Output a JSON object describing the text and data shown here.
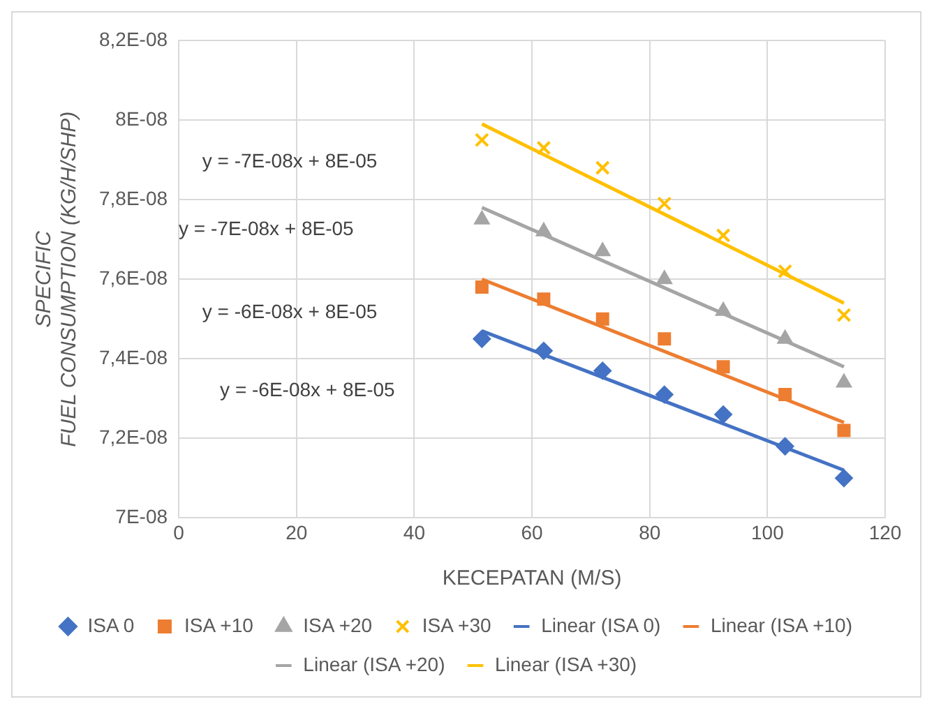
{
  "chart_data": {
    "type": "scatter",
    "xlabel": "KECEPATAN (M/S)",
    "ylabel": "SPECIFIC FUEL CONSUMPTION (KG/H/SHP)",
    "xlim": [
      0,
      120
    ],
    "xticks": [
      0,
      20,
      40,
      60,
      80,
      100,
      120
    ],
    "ylim": [
      7e-08,
      8.2e-08
    ],
    "yticks": [
      {
        "value": 7e-08,
        "label": "7E-08"
      },
      {
        "value": 7.2e-08,
        "label": "7,2E-08"
      },
      {
        "value": 7.4e-08,
        "label": "7,4E-08"
      },
      {
        "value": 7.6e-08,
        "label": "7,6E-08"
      },
      {
        "value": 7.8e-08,
        "label": "7,8E-08"
      },
      {
        "value": 8e-08,
        "label": "8E-08"
      },
      {
        "value": 8.2e-08,
        "label": "8,2E-08"
      }
    ],
    "grid": true,
    "legend": "bottom",
    "x": [
      51.5,
      62,
      72,
      82.5,
      92.5,
      103,
      113
    ],
    "series": [
      {
        "name": "ISA 0",
        "type": "scatter",
        "marker": "diamond",
        "color": "#4472c4",
        "values": [
          7.45e-08,
          7.42e-08,
          7.37e-08,
          7.31e-08,
          7.26e-08,
          7.18e-08,
          7.1e-08
        ]
      },
      {
        "name": "ISA +10",
        "type": "scatter",
        "marker": "square",
        "color": "#ed7d31",
        "values": [
          7.58e-08,
          7.55e-08,
          7.5e-08,
          7.45e-08,
          7.38e-08,
          7.31e-08,
          7.22e-08
        ]
      },
      {
        "name": "ISA +20",
        "type": "scatter",
        "marker": "triangle",
        "color": "#a5a5a5",
        "values": [
          7.75e-08,
          7.72e-08,
          7.67e-08,
          7.6e-08,
          7.52e-08,
          7.45e-08,
          7.34e-08
        ]
      },
      {
        "name": "ISA +30",
        "type": "scatter",
        "marker": "cross",
        "color": "#ffc000",
        "values": [
          7.95e-08,
          7.93e-08,
          7.88e-08,
          7.79e-08,
          7.71e-08,
          7.62e-08,
          7.51e-08
        ]
      },
      {
        "name": "Linear (ISA 0)",
        "type": "line",
        "marker": "none",
        "color": "#4472c4",
        "values": [
          7.47e-08,
          null,
          null,
          null,
          null,
          null,
          7.12e-08
        ]
      },
      {
        "name": "Linear (ISA +10)",
        "type": "line",
        "marker": "none",
        "color": "#ed7d31",
        "values": [
          7.6e-08,
          null,
          null,
          null,
          null,
          null,
          7.24e-08
        ]
      },
      {
        "name": "Linear (ISA +20)",
        "type": "line",
        "marker": "none",
        "color": "#a5a5a5",
        "values": [
          7.78e-08,
          null,
          null,
          null,
          null,
          null,
          7.38e-08
        ]
      },
      {
        "name": "Linear (ISA +30)",
        "type": "line",
        "marker": "none",
        "color": "#ffc000",
        "values": [
          7.99e-08,
          null,
          null,
          null,
          null,
          null,
          7.54e-08
        ]
      }
    ],
    "annotations": [
      "y = -7E-08x + 8E-05",
      "y = -7E-08x + 8E-05",
      "y = -6E-08x + 8E-05",
      "y = -6E-08x + 8E-05"
    ]
  }
}
